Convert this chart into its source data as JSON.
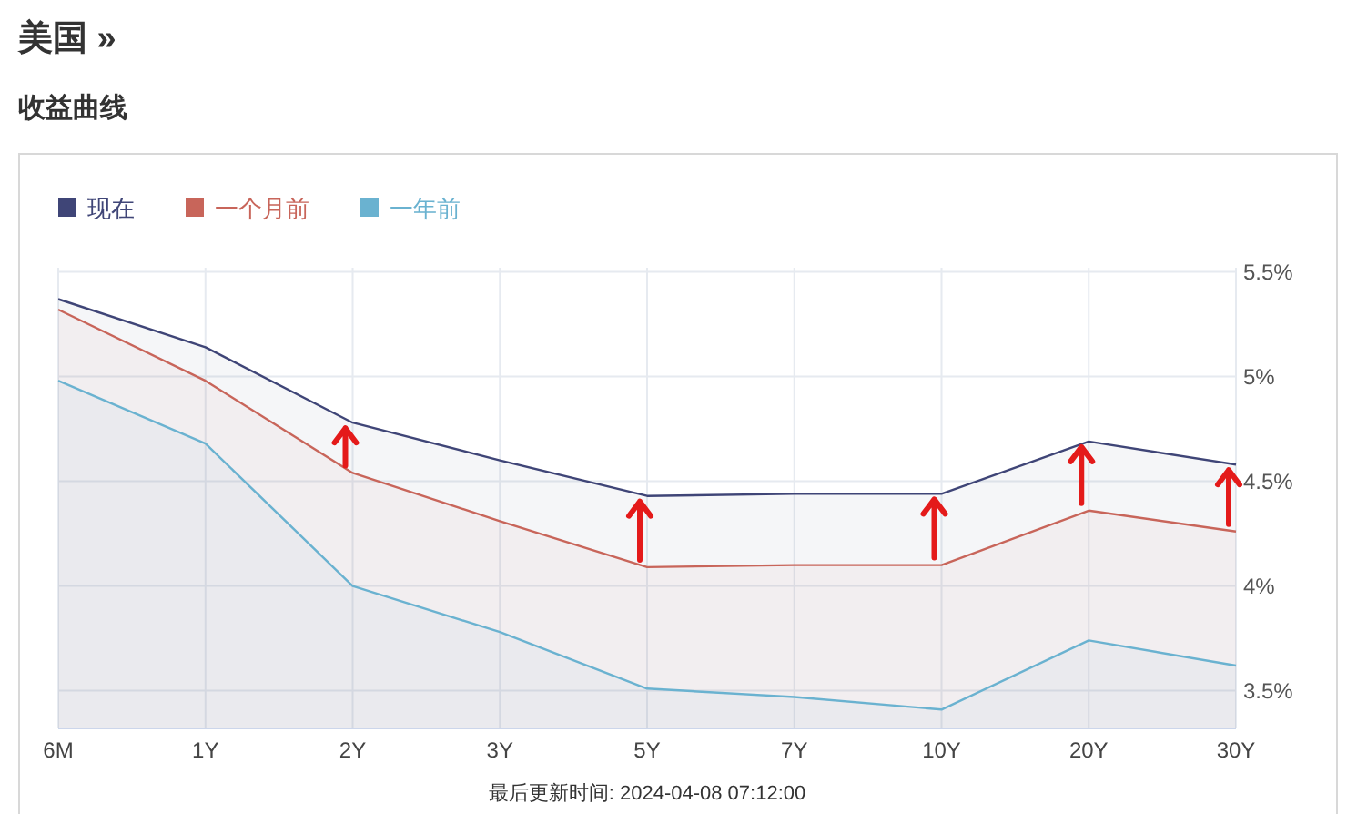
{
  "chart_data": {
    "type": "area",
    "title": "美国 »",
    "subtitle": "收益曲线",
    "categories": [
      "6M",
      "1Y",
      "2Y",
      "3Y",
      "5Y",
      "7Y",
      "10Y",
      "20Y",
      "30Y"
    ],
    "series": [
      {
        "name": "现在",
        "color": "#3f4577",
        "values": [
          5.37,
          5.14,
          4.78,
          4.6,
          4.43,
          4.44,
          4.44,
          4.69,
          4.58
        ]
      },
      {
        "name": "一个月前",
        "color": "#c8655a",
        "values": [
          5.32,
          4.98,
          4.54,
          4.31,
          4.09,
          4.1,
          4.1,
          4.36,
          4.26
        ]
      },
      {
        "name": "一年前",
        "color": "#6ab2d0",
        "values": [
          4.98,
          4.68,
          4.0,
          3.78,
          3.51,
          3.47,
          3.41,
          3.74,
          3.62
        ]
      }
    ],
    "ylim": [
      3.32,
      5.52
    ],
    "yticks": [
      {
        "value": 3.5,
        "label": "3.5%"
      },
      {
        "value": 4,
        "label": "4%"
      },
      {
        "value": 4.5,
        "label": "4.5%"
      },
      {
        "value": 5,
        "label": "5%"
      },
      {
        "value": 5.5,
        "label": "5.5%"
      }
    ],
    "grid": true,
    "legend": "top left",
    "annotations": [
      "最后更新时间: 2024-04-08 07:12:00"
    ]
  }
}
